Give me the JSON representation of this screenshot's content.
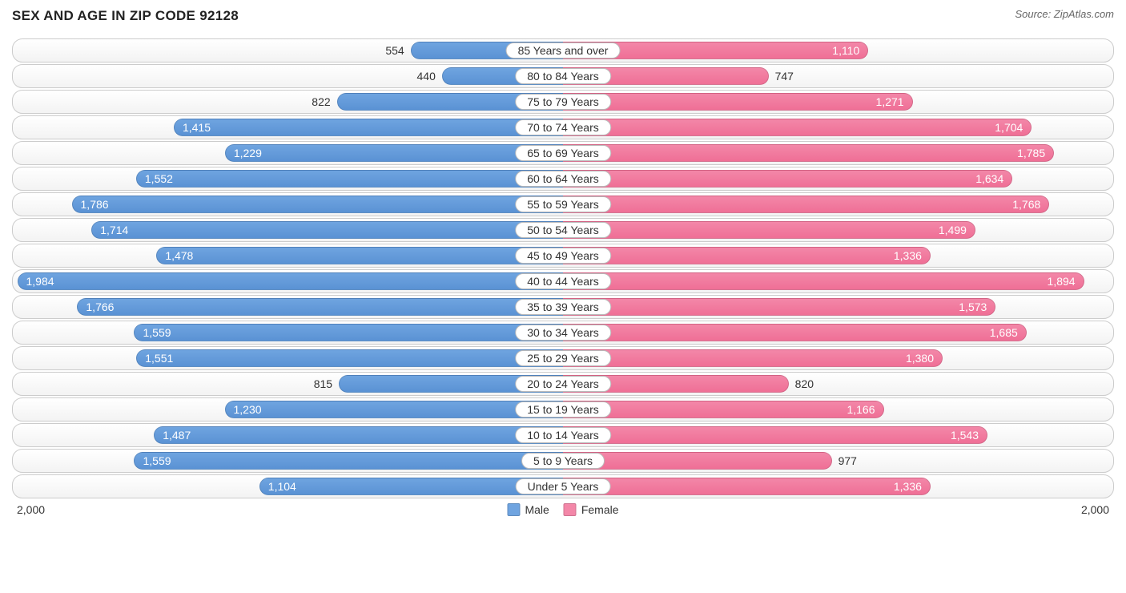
{
  "title": "SEX AND AGE IN ZIP CODE 92128",
  "source": "Source: ZipAtlas.com",
  "chart": {
    "type": "population-pyramid",
    "max_value": 2000,
    "axis_left_label": "2,000",
    "axis_right_label": "2,000",
    "male_color": "#6fa4e0",
    "male_color_dark": "#5a92d4",
    "female_color": "#f387a8",
    "female_color_dark": "#ef6f96",
    "row_bg_top": "#ffffff",
    "row_bg_bottom": "#f3f3f3",
    "row_border": "#cccccc",
    "label_bg": "#ffffff",
    "label_border": "#bbbbbb",
    "text_color": "#333333",
    "inside_text_color": "#ffffff",
    "inside_threshold": 1000,
    "legend": [
      {
        "label": "Male",
        "color": "#6fa4e0"
      },
      {
        "label": "Female",
        "color": "#f387a8"
      }
    ],
    "rows": [
      {
        "label": "85 Years and over",
        "male": 554,
        "female": 1110
      },
      {
        "label": "80 to 84 Years",
        "male": 440,
        "female": 747
      },
      {
        "label": "75 to 79 Years",
        "male": 822,
        "female": 1271
      },
      {
        "label": "70 to 74 Years",
        "male": 1415,
        "female": 1704
      },
      {
        "label": "65 to 69 Years",
        "male": 1229,
        "female": 1785
      },
      {
        "label": "60 to 64 Years",
        "male": 1552,
        "female": 1634
      },
      {
        "label": "55 to 59 Years",
        "male": 1786,
        "female": 1768
      },
      {
        "label": "50 to 54 Years",
        "male": 1714,
        "female": 1499
      },
      {
        "label": "45 to 49 Years",
        "male": 1478,
        "female": 1336
      },
      {
        "label": "40 to 44 Years",
        "male": 1984,
        "female": 1894
      },
      {
        "label": "35 to 39 Years",
        "male": 1766,
        "female": 1573
      },
      {
        "label": "30 to 34 Years",
        "male": 1559,
        "female": 1685
      },
      {
        "label": "25 to 29 Years",
        "male": 1551,
        "female": 1380
      },
      {
        "label": "20 to 24 Years",
        "male": 815,
        "female": 820
      },
      {
        "label": "15 to 19 Years",
        "male": 1230,
        "female": 1166
      },
      {
        "label": "10 to 14 Years",
        "male": 1487,
        "female": 1543
      },
      {
        "label": "5 to 9 Years",
        "male": 1559,
        "female": 977
      },
      {
        "label": "Under 5 Years",
        "male": 1104,
        "female": 1336
      }
    ]
  }
}
